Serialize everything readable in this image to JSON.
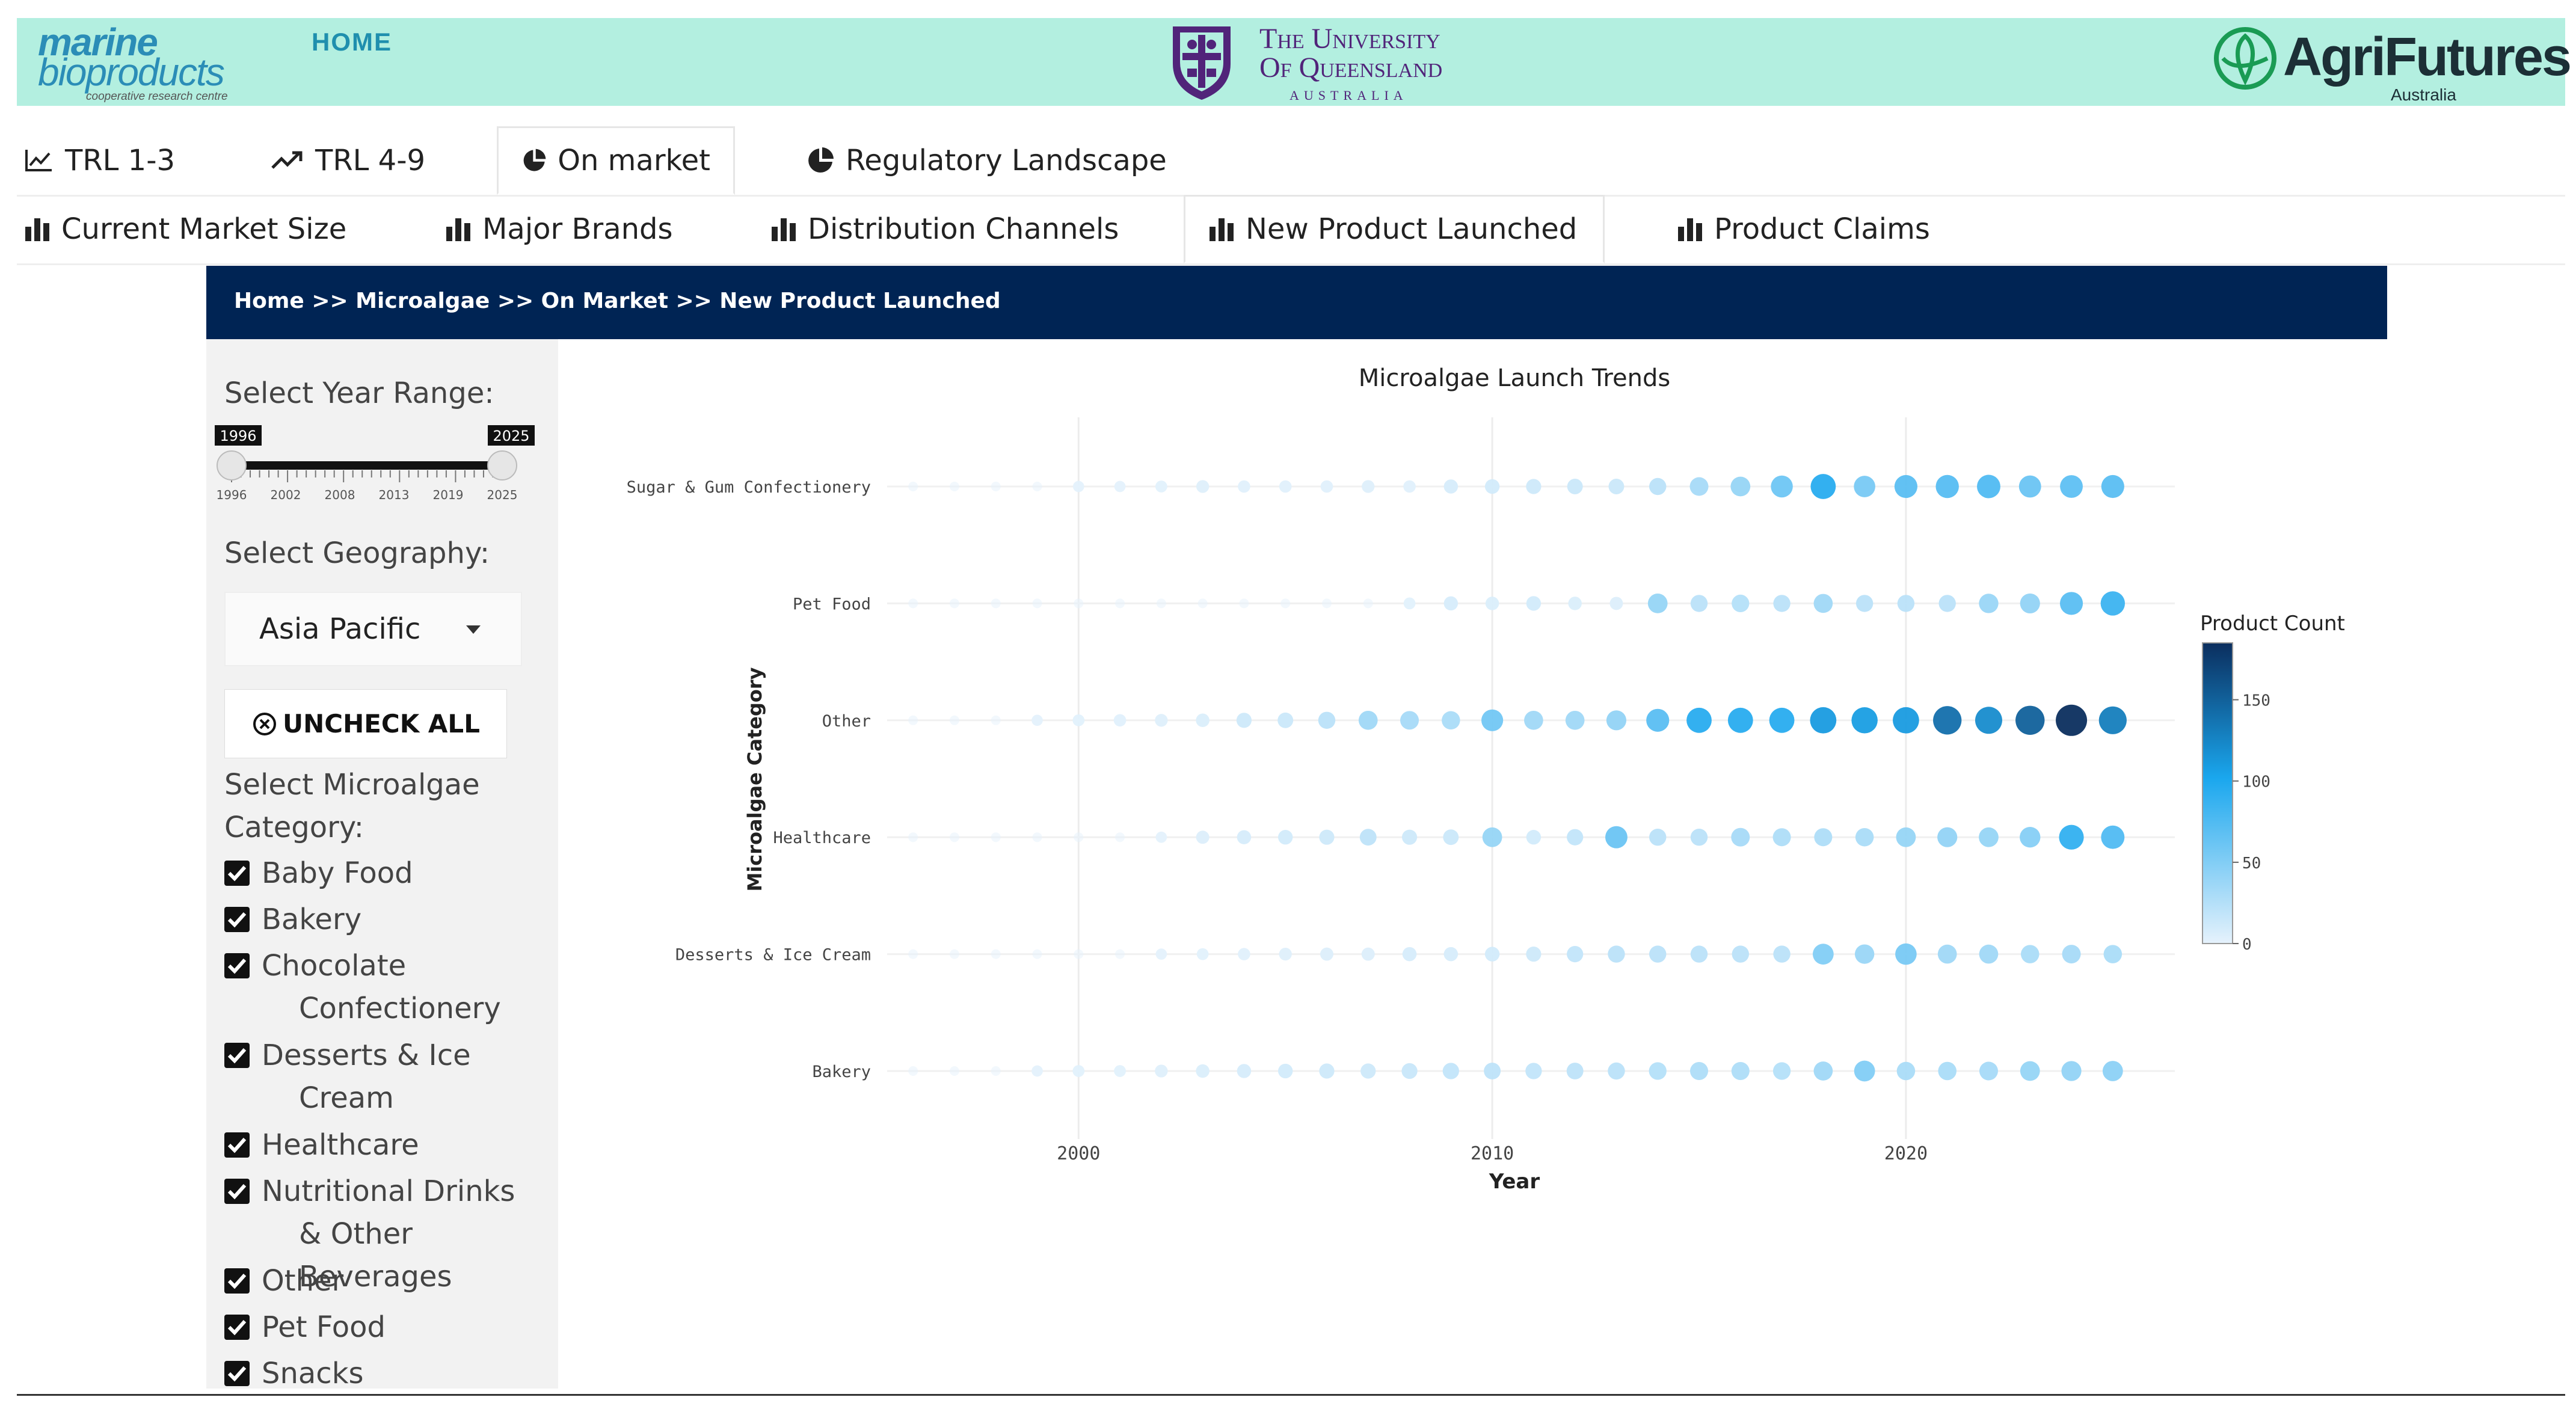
{
  "header": {
    "logo_line1": "marine",
    "logo_line2": "bioproducts",
    "logo_line3": "cooperative research centre",
    "home": "HOME",
    "uq_line1": "The University",
    "uq_line2": "Of Queensland",
    "uq_line3": "AUSTRALIA",
    "agri_name": "AgriFutures",
    "agri_sub": "Australia"
  },
  "tabs_top": [
    {
      "label": "TRL 1-3",
      "icon": "line-chart-icon"
    },
    {
      "label": "TRL 4-9",
      "icon": "trend-up-icon"
    },
    {
      "label": "On market",
      "icon": "pie-chart-icon",
      "active": true
    },
    {
      "label": "Regulatory Landscape",
      "icon": "pie-chart-icon"
    }
  ],
  "tabs_sub": [
    {
      "label": "Current Market Size",
      "icon": "bar-chart-icon"
    },
    {
      "label": "Major Brands",
      "icon": "bar-chart-icon"
    },
    {
      "label": "Distribution Channels",
      "icon": "bar-chart-icon"
    },
    {
      "label": "New Product Launched",
      "icon": "bar-chart-icon",
      "active": true
    },
    {
      "label": "Product Claims",
      "icon": "bar-chart-icon"
    }
  ],
  "breadcrumb": "Home >> Microalgae >> On Market >> New Product Launched",
  "sidebar": {
    "year_label": "Select Year Range:",
    "year_min": "1996",
    "year_max": "2025",
    "year_ticks": [
      "1996",
      "2002",
      "2008",
      "2013",
      "2019",
      "2025"
    ],
    "geo_label": "Select Geography:",
    "geo_value": "Asia Pacific",
    "uncheck_all": "UNCHECK ALL",
    "category_label": "Select Microalgae Category:",
    "categories": [
      "Baby Food",
      "Bakery",
      "Chocolate Confectionery",
      "Desserts & Ice Cream",
      "Healthcare",
      "Nutritional Drinks & Other Beverages",
      "Other",
      "Pet Food",
      "Snacks"
    ]
  },
  "chart_data": {
    "type": "scatter",
    "title": "Microalgae Launch Trends",
    "xlabel": "Year",
    "ylabel": "Microalgae Category",
    "xlim": [
      1994.5,
      2026.5
    ],
    "x_ticks": [
      2000,
      2010,
      2020
    ],
    "categories": [
      "Sugar & Gum Confectionery",
      "Pet Food",
      "Other",
      "Healthcare",
      "Desserts & Ice Cream",
      "Bakery"
    ],
    "colorbar_title": "Product Count",
    "colorbar_ticks": [
      0,
      50,
      100,
      150
    ],
    "colorbar_max": 185,
    "colors": {
      "low": "#e6f2fc",
      "mid": "#1aa7ee",
      "high": "#0b2e5e"
    },
    "series": [
      {
        "name": "Sugar & Gum Confectionery",
        "x": [
          1996,
          1997,
          1998,
          1999,
          2000,
          2001,
          2002,
          2003,
          2004,
          2005,
          2006,
          2007,
          2008,
          2009,
          2010,
          2011,
          2012,
          2013,
          2014,
          2015,
          2016,
          2017,
          2018,
          2019,
          2020,
          2021,
          2022,
          2023,
          2024,
          2025
        ],
        "values": [
          0,
          0,
          0,
          0,
          1,
          1,
          2,
          4,
          3,
          3,
          3,
          4,
          3,
          8,
          10,
          12,
          14,
          14,
          22,
          32,
          40,
          60,
          95,
          55,
          70,
          72,
          75,
          62,
          68,
          70
        ]
      },
      {
        "name": "Pet Food",
        "x": [
          1996,
          1997,
          1998,
          1999,
          2000,
          2001,
          2002,
          2003,
          2004,
          2005,
          2006,
          2007,
          2008,
          2009,
          2010,
          2011,
          2012,
          2013,
          2014,
          2015,
          2016,
          2017,
          2018,
          2019,
          2020,
          2021,
          2022,
          2023,
          2024,
          2025
        ],
        "values": [
          0,
          0,
          0,
          0,
          0,
          0,
          0,
          0,
          0,
          0,
          0,
          0,
          2,
          8,
          6,
          10,
          6,
          5,
          40,
          22,
          25,
          22,
          35,
          22,
          22,
          22,
          38,
          42,
          70,
          85
        ]
      },
      {
        "name": "Other",
        "x": [
          1996,
          1997,
          1998,
          1999,
          2000,
          2001,
          2002,
          2003,
          2004,
          2005,
          2006,
          2007,
          2008,
          2009,
          2010,
          2011,
          2012,
          2013,
          2014,
          2015,
          2016,
          2017,
          2018,
          2019,
          2020,
          2021,
          2022,
          2023,
          2024,
          2025
        ],
        "values": [
          0,
          0,
          0,
          1,
          2,
          3,
          4,
          6,
          12,
          14,
          22,
          35,
          32,
          30,
          58,
          35,
          35,
          42,
          70,
          95,
          95,
          95,
          110,
          108,
          110,
          140,
          120,
          150,
          185,
          130
        ]
      },
      {
        "name": "Healthcare",
        "x": [
          1996,
          1997,
          1998,
          1999,
          2000,
          2001,
          2002,
          2003,
          2004,
          2005,
          2006,
          2007,
          2008,
          2009,
          2010,
          2011,
          2012,
          2013,
          2014,
          2015,
          2016,
          2017,
          2018,
          2019,
          2020,
          2021,
          2022,
          2023,
          2024,
          2025
        ],
        "values": [
          0,
          0,
          0,
          0,
          0,
          0,
          1,
          5,
          8,
          10,
          12,
          20,
          12,
          14,
          40,
          10,
          18,
          62,
          22,
          22,
          32,
          28,
          28,
          30,
          40,
          42,
          40,
          48,
          90,
          75
        ]
      },
      {
        "name": "Desserts & Ice Cream",
        "x": [
          1996,
          1997,
          1998,
          1999,
          2000,
          2001,
          2002,
          2003,
          2004,
          2005,
          2006,
          2007,
          2008,
          2009,
          2010,
          2011,
          2012,
          2013,
          2014,
          2015,
          2016,
          2017,
          2018,
          2019,
          2020,
          2021,
          2022,
          2023,
          2024,
          2025
        ],
        "values": [
          0,
          0,
          0,
          0,
          0,
          0,
          1,
          2,
          3,
          4,
          5,
          5,
          8,
          8,
          10,
          12,
          18,
          22,
          22,
          22,
          22,
          22,
          50,
          38,
          55,
          35,
          35,
          30,
          32,
          30
        ]
      },
      {
        "name": "Bakery",
        "x": [
          1996,
          1997,
          1998,
          1999,
          2000,
          2001,
          2002,
          2003,
          2004,
          2005,
          2006,
          2007,
          2008,
          2009,
          2010,
          2011,
          2012,
          2013,
          2014,
          2015,
          2016,
          2017,
          2018,
          2019,
          2020,
          2021,
          2022,
          2023,
          2024,
          2025
        ],
        "values": [
          0,
          0,
          0,
          1,
          2,
          2,
          4,
          6,
          8,
          10,
          12,
          12,
          15,
          18,
          20,
          18,
          20,
          22,
          25,
          28,
          28,
          25,
          35,
          50,
          30,
          30,
          32,
          40,
          42,
          45
        ]
      }
    ]
  }
}
